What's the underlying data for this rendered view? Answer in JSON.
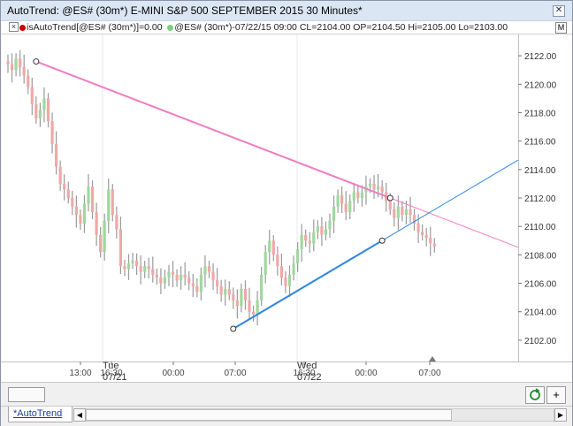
{
  "window": {
    "title": "AutoTrend: @ES# (30m*) E-MINI S&P 500 SEPTEMBER 2015 30 Minutes*",
    "close_label": "✕"
  },
  "infobar": {
    "indicator_text": "isAutoTrend[@ES# (30m*)]=0.00",
    "bar_text": "@ES# (30m*)-07/22/15 09:00 CL=2104.00 OP=2104.50 Hi=2105.00 Lo=2103.00",
    "m_label": "M",
    "indicator_dot_color": "#cc0000",
    "bar_dot_color": "#7fcf7f"
  },
  "colors": {
    "up_bar": "#9fd89f",
    "down_bar": "#f0a8a8",
    "wick": "#9a9a9a",
    "resistance_line": "#f07cc0",
    "support_line": "#2f86e0",
    "grid": "#e8e8e8"
  },
  "chart_data": {
    "type": "ohlc",
    "y_axis": {
      "ticks": [
        "2122.00",
        "2120.00",
        "2118.00",
        "2116.00",
        "2114.00",
        "2112.00",
        "2110.00",
        "2108.00",
        "2106.00",
        "2104.00",
        "2102.00"
      ],
      "range": [
        2100.5,
        2123.5
      ]
    },
    "x_axis": {
      "time_labels": [
        "13:00",
        "16:30",
        "00:00",
        "07:00",
        "16:30",
        "00:00",
        "07:00"
      ],
      "day_labels": [
        {
          "day": "Tue",
          "date": "07/21"
        },
        {
          "day": "Wed",
          "date": "07/22"
        }
      ]
    },
    "bars_close": [
      2121.4,
      2121.0,
      2121.8,
      2121.2,
      2120.6,
      2119.8,
      2118.6,
      2117.6,
      2118.2,
      2119.0,
      2117.4,
      2115.8,
      2114.2,
      2113.0,
      2112.6,
      2112.0,
      2111.4,
      2110.8,
      2110.2,
      2111.6,
      2112.8,
      2111.0,
      2109.4,
      2108.2,
      2110.4,
      2112.6,
      2110.8,
      2109.8,
      2107.2,
      2107.0,
      2107.4,
      2107.6,
      2107.2,
      2106.8,
      2107.2,
      2107.0,
      2106.6,
      2106.4,
      2106.0,
      2106.4,
      2106.8,
      2106.6,
      2106.2,
      2106.6,
      2106.4,
      2106.0,
      2105.8,
      2105.4,
      2106.6,
      2107.2,
      2106.8,
      2106.2,
      2105.8,
      2105.2,
      2105.6,
      2105.2,
      2104.8,
      2104.4,
      2105.6,
      2104.8,
      2104.0,
      2103.8,
      2104.8,
      2106.6,
      2108.2,
      2109.0,
      2108.0,
      2107.2,
      2106.4,
      2105.8,
      2106.6,
      2107.4,
      2108.4,
      2109.4,
      2109.0,
      2108.8,
      2109.6,
      2110.0,
      2109.4,
      2109.8,
      2110.4,
      2111.4,
      2112.2,
      2111.6,
      2111.0,
      2111.8,
      2112.4,
      2112.0,
      2112.4,
      2112.8,
      2113.0,
      2112.6,
      2112.8,
      2112.4,
      2111.8,
      2111.2,
      2110.6,
      2111.4,
      2110.8,
      2111.2,
      2110.8,
      2110.2,
      2109.6,
      2109.4,
      2109.2,
      2108.8,
      2108.6
    ],
    "trendlines": [
      {
        "name": "resistance",
        "from": {
          "bar": 7,
          "price": 2121.6
        },
        "to": {
          "bar": 95,
          "price": 2112.0
        }
      },
      {
        "name": "support",
        "from": {
          "bar": 56,
          "price": 2102.8
        },
        "to": {
          "bar": 93,
          "price": 2109.0
        }
      }
    ]
  },
  "timebar": {
    "plus_label": "+"
  },
  "tabs": {
    "active_label": "*AutoTrend"
  },
  "scroll": {
    "left_arrow": "◀",
    "right_arrow": "▶"
  }
}
